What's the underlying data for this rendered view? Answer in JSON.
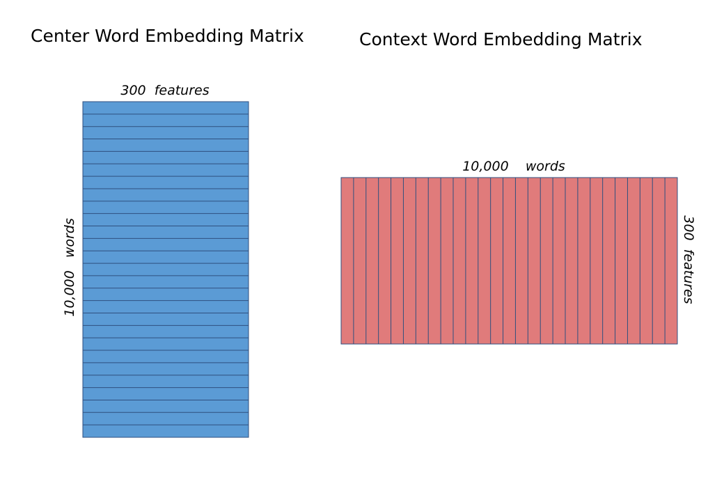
{
  "colors": {
    "center_fill": "#5b9bd5",
    "context_fill": "#e07b7b",
    "line": "#2f4f7f",
    "text": "#000000"
  },
  "center_matrix": {
    "title": "Center Word Embedding Matrix",
    "top_label": "300  features",
    "side_label": "10,000   words",
    "row_count": 27
  },
  "context_matrix": {
    "title": "Context Word Embedding Matrix",
    "top_label": "10,000    words",
    "side_label": "300  features",
    "column_count": 27
  }
}
